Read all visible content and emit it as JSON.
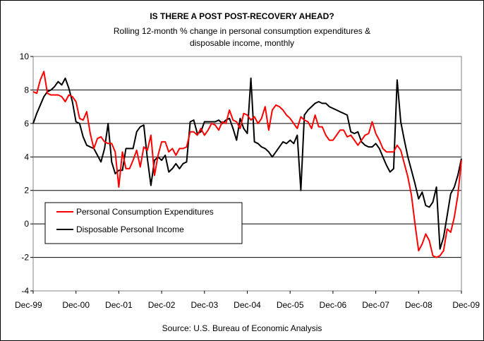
{
  "chart_data": {
    "type": "line",
    "title": "IS THERE A POST POST-RECOVERY AHEAD?",
    "subtitle_line1": "Rolling 12-month % change in personal consumption expenditures &",
    "subtitle_line2": "disposable income, monthly",
    "source": "Source: U.S. Bureau of Economic Analysis",
    "ylim": [
      -4,
      10
    ],
    "yticks": [
      "10",
      "8",
      "6",
      "4",
      "2",
      "0",
      "-2",
      "-4"
    ],
    "xticks": [
      "Dec-99",
      "Dec-00",
      "Dec-01",
      "Dec-02",
      "Dec-03",
      "Dec-04",
      "Dec-05",
      "Dec-06",
      "Dec-07",
      "Dec-08",
      "Dec-09"
    ],
    "grid": true,
    "legend_placement": "lower-left",
    "colors": {
      "pce": "#ff0000",
      "dpi": "#000000"
    },
    "start_month": "Dec-99",
    "series": [
      {
        "name": "Personal Consumption Expenditures",
        "color": "#ff0000",
        "values": [
          7.9,
          7.8,
          8.6,
          9.1,
          7.8,
          7.7,
          7.7,
          7.7,
          7.6,
          7.3,
          7.7,
          7.6,
          7.3,
          6.3,
          6.2,
          6.7,
          5.4,
          4.5,
          5.1,
          5.2,
          4.9,
          4.8,
          4.8,
          4.3,
          2.2,
          4.3,
          3.3,
          3.3,
          3.8,
          4.4,
          3.4,
          4.6,
          4.4,
          5.3,
          2.9,
          4.1,
          4.9,
          4.9,
          4.3,
          4.5,
          4.1,
          4.5,
          4.5,
          4.6,
          5.5,
          5.5,
          5.3,
          5.7,
          5.3,
          5.6,
          6.0,
          5.9,
          5.6,
          6.1,
          6.0,
          6.8,
          6.2,
          6.1,
          5.7,
          6.6,
          6.5,
          6.2,
          6.4,
          6.0,
          6.3,
          7.0,
          5.6,
          6.8,
          7.1,
          7.0,
          6.8,
          6.5,
          6.3,
          6.0,
          5.7,
          6.4,
          6.2,
          6.1,
          5.7,
          6.5,
          5.8,
          5.8,
          5.3,
          5.0,
          5.0,
          5.3,
          5.6,
          5.6,
          5.2,
          5.3,
          5.0,
          4.7,
          5.0,
          5.3,
          5.4,
          6.1,
          5.4,
          5.0,
          4.5,
          4.3,
          4.3,
          4.3,
          4.7,
          4.4,
          3.6,
          2.8,
          1.7,
          0.0,
          -1.6,
          -1.2,
          -0.6,
          -1.0,
          -1.9,
          -2.0,
          -1.9,
          -1.6,
          -0.3,
          -0.5,
          0.4,
          1.7,
          3.8
        ]
      },
      {
        "name": "Disposable Personal Income",
        "color": "#000000",
        "values": [
          6.0,
          6.6,
          7.1,
          7.6,
          7.9,
          8.0,
          8.2,
          8.5,
          8.3,
          8.7,
          8.1,
          7.3,
          6.1,
          6.0,
          5.2,
          4.7,
          4.6,
          4.5,
          4.1,
          3.7,
          4.5,
          6.0,
          3.7,
          3.0,
          3.2,
          3.2,
          4.5,
          4.5,
          4.5,
          5.5,
          5.8,
          5.9,
          3.9,
          2.3,
          3.8,
          4.0,
          3.8,
          4.1,
          3.1,
          3.3,
          3.6,
          3.3,
          3.6,
          3.7,
          6.1,
          6.2,
          5.4,
          5.5,
          6.1,
          6.1,
          6.1,
          6.1,
          6.2,
          6.0,
          6.2,
          6.3,
          5.7,
          5.0,
          6.3,
          5.7,
          5.4,
          8.7,
          4.9,
          4.8,
          4.6,
          4.5,
          4.3,
          4.0,
          4.3,
          4.6,
          4.9,
          4.8,
          5.0,
          4.8,
          5.3,
          2.0,
          6.5,
          6.8,
          7.0,
          7.2,
          7.3,
          7.2,
          7.2,
          7.0,
          6.9,
          6.8,
          6.7,
          6.6,
          6.5,
          5.5,
          5.4,
          5.5,
          4.9,
          4.7,
          4.6,
          4.6,
          4.8,
          4.5,
          4.0,
          3.5,
          3.1,
          3.3,
          8.6,
          6.1,
          5.0,
          4.0,
          3.2,
          2.4,
          1.5,
          1.9,
          1.1,
          1.0,
          1.3,
          2.2,
          -1.5,
          -0.8,
          0.5,
          1.8,
          2.2,
          2.9,
          3.9
        ]
      }
    ]
  }
}
